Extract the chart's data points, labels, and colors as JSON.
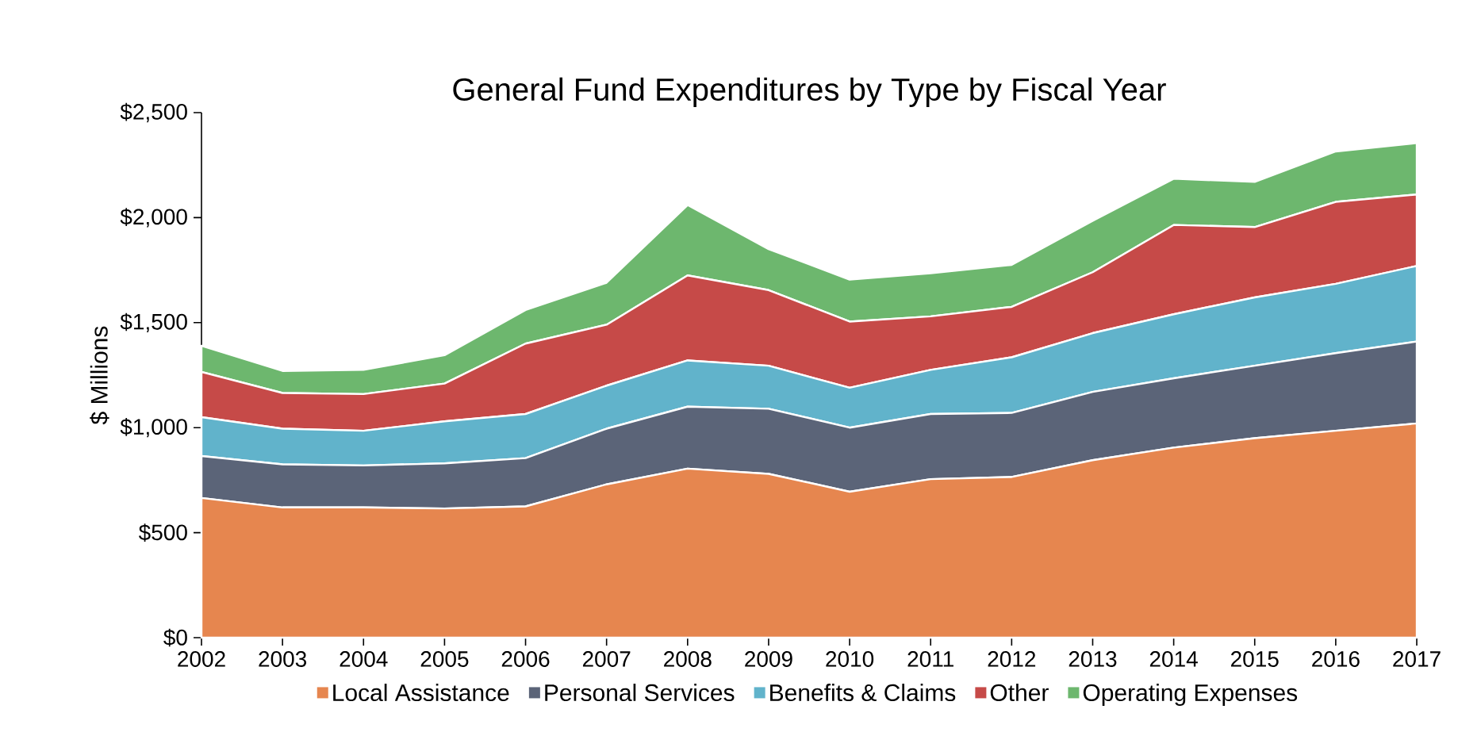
{
  "chart_data": {
    "type": "area",
    "title": "General Fund Expenditures by Type by Fiscal Year",
    "ylabel": "$ Millions",
    "stacked": true,
    "legend": "bottom",
    "categories": [
      "2002",
      "2003",
      "2004",
      "2005",
      "2006",
      "2007",
      "2008",
      "2009",
      "2010",
      "2011",
      "2012",
      "2013",
      "2014",
      "2015",
      "2016",
      "2017"
    ],
    "ylim": [
      0,
      2500
    ],
    "yticks": [
      {
        "value": 0,
        "label": "$0"
      },
      {
        "value": 500,
        "label": "$500"
      },
      {
        "value": 1000,
        "label": "$1,000"
      },
      {
        "value": 1500,
        "label": "$1,500"
      },
      {
        "value": 2000,
        "label": "$2,000"
      },
      {
        "value": 2500,
        "label": "$2,500"
      }
    ],
    "series": [
      {
        "name": "Local Assistance",
        "color": "#e6864f",
        "values": [
          665,
          620,
          620,
          615,
          625,
          730,
          805,
          780,
          695,
          755,
          765,
          845,
          905,
          950,
          985,
          1020
        ]
      },
      {
        "name": "Personal Services",
        "color": "#5b6478",
        "values": [
          200,
          205,
          200,
          215,
          230,
          265,
          295,
          310,
          305,
          310,
          305,
          325,
          330,
          345,
          370,
          390
        ]
      },
      {
        "name": "Benefits & Claims",
        "color": "#61b3cb",
        "values": [
          185,
          170,
          165,
          200,
          210,
          205,
          220,
          205,
          190,
          210,
          265,
          280,
          305,
          325,
          330,
          360
        ]
      },
      {
        "name": "Other",
        "color": "#c64a48",
        "values": [
          215,
          170,
          175,
          180,
          335,
          290,
          405,
          360,
          315,
          255,
          240,
          290,
          425,
          335,
          390,
          340
        ]
      },
      {
        "name": "Operating Expenses",
        "color": "#6db76e",
        "values": [
          125,
          105,
          115,
          135,
          160,
          200,
          335,
          195,
          200,
          205,
          200,
          245,
          220,
          215,
          240,
          245
        ]
      }
    ]
  }
}
